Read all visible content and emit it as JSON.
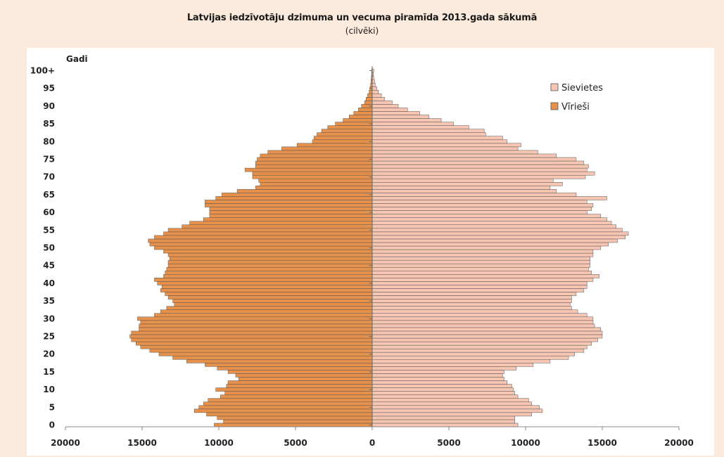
{
  "chart_data": {
    "type": "bar",
    "orientation": "horizontal-pyramid",
    "title": "Latvijas iedzīvotāju dzimuma un vecuma piramīda 2013.gada sākumā",
    "subtitle": "(cilvēki)",
    "ylabel": "Gadi",
    "xlim": [
      -20000,
      20000
    ],
    "x_ticks": [
      -20000,
      -15000,
      -10000,
      -5000,
      0,
      5000,
      10000,
      15000,
      20000
    ],
    "x_tick_labels": [
      "20000",
      "15000",
      "10000",
      "5000",
      "0",
      "5000",
      "10000",
      "15000",
      "20000"
    ],
    "y_ticks": [
      0,
      5,
      10,
      15,
      20,
      25,
      30,
      35,
      40,
      45,
      50,
      55,
      60,
      65,
      70,
      75,
      80,
      85,
      90,
      95,
      100
    ],
    "y_tick_labels": [
      "0",
      "5",
      "10",
      "15",
      "20",
      "25",
      "30",
      "35",
      "40",
      "45",
      "50",
      "55",
      "60",
      "65",
      "70",
      "75",
      "80",
      "85",
      "90",
      "95",
      "100+"
    ],
    "legend_position": "top-right",
    "colors": {
      "women": "#f6c6b2",
      "men": "#e6914b",
      "edge": "#555555",
      "background": "#ffffff",
      "page": "#fcebdc"
    },
    "categories": [
      "0",
      "1",
      "2",
      "3",
      "4",
      "5",
      "6",
      "7",
      "8",
      "9",
      "10",
      "11",
      "12",
      "13",
      "14",
      "15",
      "16",
      "17",
      "18",
      "19",
      "20",
      "21",
      "22",
      "23",
      "24",
      "25",
      "26",
      "27",
      "28",
      "29",
      "30",
      "31",
      "32",
      "33",
      "34",
      "35",
      "36",
      "37",
      "38",
      "39",
      "40",
      "41",
      "42",
      "43",
      "44",
      "45",
      "46",
      "47",
      "48",
      "49",
      "50",
      "51",
      "52",
      "53",
      "54",
      "55",
      "56",
      "57",
      "58",
      "59",
      "60",
      "61",
      "62",
      "63",
      "64",
      "65",
      "66",
      "67",
      "68",
      "69",
      "70",
      "71",
      "72",
      "73",
      "74",
      "75",
      "76",
      "77",
      "78",
      "79",
      "80",
      "81",
      "82",
      "83",
      "84",
      "85",
      "86",
      "87",
      "88",
      "89",
      "90",
      "91",
      "92",
      "93",
      "94",
      "95",
      "96",
      "97",
      "98",
      "99",
      "100+"
    ],
    "series": [
      {
        "name": "Sievietes",
        "values": [
          9500,
          9300,
          9300,
          10400,
          11100,
          10900,
          10400,
          10200,
          9500,
          9300,
          9200,
          9100,
          8800,
          8600,
          8500,
          8600,
          9400,
          10500,
          11600,
          12800,
          13200,
          13800,
          14000,
          14300,
          14700,
          15000,
          15000,
          14900,
          14500,
          14400,
          14400,
          14000,
          13400,
          13000,
          12900,
          13000,
          13000,
          13300,
          13800,
          14000,
          14000,
          14400,
          14800,
          14300,
          14100,
          14200,
          14200,
          14200,
          14400,
          14400,
          14900,
          15400,
          16000,
          16500,
          16700,
          16300,
          15900,
          15600,
          15300,
          14900,
          14000,
          14300,
          14400,
          14000,
          15300,
          13300,
          12000,
          11600,
          12400,
          11800,
          13900,
          14500,
          14000,
          14100,
          13800,
          13300,
          12000,
          10800,
          9500,
          9700,
          8800,
          8500,
          7400,
          7300,
          6300,
          5300,
          4500,
          3700,
          3100,
          2300,
          1700,
          1300,
          800,
          600,
          400,
          300,
          200,
          150,
          100,
          80,
          100
        ]
      },
      {
        "name": "Vīrieši",
        "values": [
          10300,
          9700,
          10100,
          10800,
          11600,
          11300,
          11000,
          10700,
          9900,
          9600,
          10200,
          9500,
          9400,
          8700,
          8900,
          9400,
          10100,
          10900,
          12100,
          13000,
          13900,
          14500,
          15100,
          15400,
          15700,
          15800,
          15700,
          15200,
          15200,
          15100,
          15300,
          14200,
          13800,
          13400,
          12900,
          13000,
          13300,
          13500,
          13800,
          13700,
          14000,
          14200,
          13600,
          13500,
          13400,
          13300,
          13300,
          13200,
          13300,
          13600,
          14200,
          14500,
          14600,
          14200,
          13600,
          13300,
          12400,
          11900,
          11000,
          10600,
          10600,
          10600,
          10900,
          10900,
          10200,
          9800,
          8800,
          7600,
          7300,
          7400,
          7800,
          7800,
          8300,
          7600,
          7600,
          7500,
          7300,
          6800,
          5900,
          4900,
          3900,
          3800,
          3600,
          3300,
          2900,
          2400,
          1900,
          1500,
          1200,
          900,
          700,
          500,
          400,
          300,
          200,
          150,
          100,
          80,
          60,
          40,
          30
        ]
      }
    ]
  }
}
